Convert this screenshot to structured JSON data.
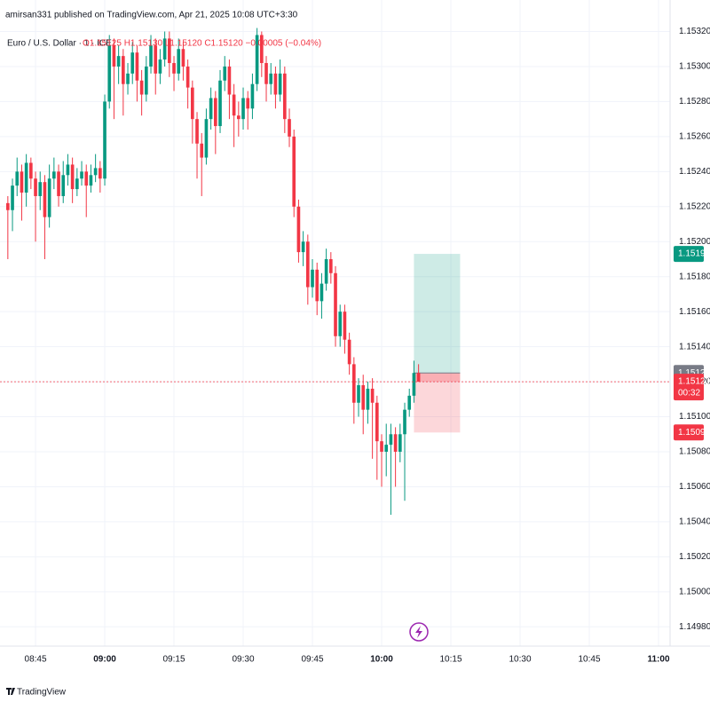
{
  "header": {
    "publisher": "amirsan331 published on TradingView.com, Apr 21, 2025 10:08 UTC+3:30",
    "symbol": "Euro / U.S. Dollar · 1 · ICE",
    "ohlc_text": "O1.15125 H1.15130 L1.15120 C1.15120 −0.00005 (−0.04%)"
  },
  "footer": {
    "brand": "TradingView"
  },
  "chart_data": {
    "type": "candlestick",
    "up_color": "#089981",
    "down_color": "#f23645",
    "grid": true,
    "xlim": [
      517.3,
      662.5
    ],
    "xticks": [
      {
        "value": 525,
        "label": "08:45"
      },
      {
        "value": 540,
        "label": "09:00"
      },
      {
        "value": 555,
        "label": "09:15"
      },
      {
        "value": 570,
        "label": "09:30"
      },
      {
        "value": 585,
        "label": "09:45"
      },
      {
        "value": 600,
        "label": "10:00"
      },
      {
        "value": 615,
        "label": "10:15"
      },
      {
        "value": 630,
        "label": "10:30"
      },
      {
        "value": 645,
        "label": "10:45"
      },
      {
        "value": 660,
        "label": "11:00"
      }
    ],
    "ylim": [
      1.14969,
      1.15338
    ],
    "yticks": [
      {
        "value": 1.1532,
        "label": "1.15320"
      },
      {
        "value": 1.153,
        "label": "1.15300"
      },
      {
        "value": 1.1528,
        "label": "1.15280"
      },
      {
        "value": 1.1526,
        "label": "1.15260"
      },
      {
        "value": 1.1524,
        "label": "1.15240"
      },
      {
        "value": 1.1522,
        "label": "1.15220"
      },
      {
        "value": 1.152,
        "label": "1.15200"
      },
      {
        "value": 1.1518,
        "label": "1.15180"
      },
      {
        "value": 1.1516,
        "label": "1.15160"
      },
      {
        "value": 1.1514,
        "label": "1.15140"
      },
      {
        "value": 1.1512,
        "label": "1.15120"
      },
      {
        "value": 1.151,
        "label": "1.15100"
      },
      {
        "value": 1.1508,
        "label": "1.15080"
      },
      {
        "value": 1.1506,
        "label": "1.15060"
      },
      {
        "value": 1.1504,
        "label": "1.15040"
      },
      {
        "value": 1.1502,
        "label": "1.15020"
      },
      {
        "value": 1.15,
        "label": "1.15000"
      },
      {
        "value": 1.1498,
        "label": "1.14980"
      }
    ],
    "x": [
      519,
      520,
      521,
      522,
      523,
      524,
      525,
      526,
      527,
      528,
      529,
      530,
      531,
      532,
      533,
      534,
      535,
      536,
      537,
      538,
      539,
      540,
      541,
      542,
      543,
      544,
      545,
      546,
      547,
      548,
      549,
      550,
      551,
      552,
      553,
      554,
      555,
      556,
      557,
      558,
      559,
      560,
      561,
      562,
      563,
      564,
      565,
      566,
      567,
      568,
      569,
      570,
      571,
      572,
      573,
      574,
      575,
      576,
      577,
      578,
      579,
      580,
      581,
      582,
      583,
      584,
      585,
      586,
      587,
      588,
      589,
      590,
      591,
      592,
      593,
      594,
      595,
      596,
      597,
      598,
      599,
      600,
      601,
      602,
      603,
      604,
      605,
      606,
      607,
      608
    ],
    "ohlc": [
      [
        1.15222,
        1.15226,
        1.1519,
        1.15218
      ],
      [
        1.15218,
        1.15236,
        1.15206,
        1.15232
      ],
      [
        1.15232,
        1.15248,
        1.15226,
        1.1524
      ],
      [
        1.1524,
        1.15244,
        1.15212,
        1.15228
      ],
      [
        1.15228,
        1.1525,
        1.1522,
        1.15245
      ],
      [
        1.15245,
        1.15248,
        1.1523,
        1.15236
      ],
      [
        1.15236,
        1.1524,
        1.152,
        1.15226
      ],
      [
        1.15226,
        1.1524,
        1.15218,
        1.15234
      ],
      [
        1.15234,
        1.15238,
        1.1519,
        1.15214
      ],
      [
        1.15214,
        1.15244,
        1.15208,
        1.15236
      ],
      [
        1.15236,
        1.15248,
        1.1523,
        1.1524
      ],
      [
        1.1524,
        1.15244,
        1.1522,
        1.15226
      ],
      [
        1.15226,
        1.15246,
        1.15222,
        1.15238
      ],
      [
        1.15238,
        1.1525,
        1.15232,
        1.15244
      ],
      [
        1.15244,
        1.15248,
        1.15222,
        1.1523
      ],
      [
        1.1523,
        1.15242,
        1.15226,
        1.15236
      ],
      [
        1.15236,
        1.15246,
        1.15232,
        1.1524
      ],
      [
        1.1524,
        1.15244,
        1.15214,
        1.15232
      ],
      [
        1.15232,
        1.15244,
        1.15228,
        1.15238
      ],
      [
        1.15238,
        1.1525,
        1.15234,
        1.15242
      ],
      [
        1.15242,
        1.15246,
        1.15228,
        1.15236
      ],
      [
        1.15236,
        1.15284,
        1.15232,
        1.1528
      ],
      [
        1.1528,
        1.15318,
        1.15276,
        1.15312
      ],
      [
        1.15312,
        1.15316,
        1.1527,
        1.153
      ],
      [
        1.153,
        1.15312,
        1.1529,
        1.15306
      ],
      [
        1.15306,
        1.1531,
        1.15272,
        1.1529
      ],
      [
        1.1529,
        1.15302,
        1.15284,
        1.15296
      ],
      [
        1.15296,
        1.15314,
        1.1529,
        1.15308
      ],
      [
        1.15308,
        1.15312,
        1.1528,
        1.15292
      ],
      [
        1.15292,
        1.15298,
        1.15272,
        1.15284
      ],
      [
        1.15284,
        1.15306,
        1.1528,
        1.153
      ],
      [
        1.153,
        1.15318,
        1.15296,
        1.15312
      ],
      [
        1.15312,
        1.15316,
        1.15284,
        1.15296
      ],
      [
        1.15296,
        1.1531,
        1.1529,
        1.15304
      ],
      [
        1.15304,
        1.1532,
        1.153,
        1.15316
      ],
      [
        1.15316,
        1.1532,
        1.15294,
        1.15302
      ],
      [
        1.15302,
        1.15306,
        1.15286,
        1.15296
      ],
      [
        1.15296,
        1.15316,
        1.15292,
        1.1531
      ],
      [
        1.1531,
        1.15314,
        1.15292,
        1.153
      ],
      [
        1.153,
        1.15304,
        1.15276,
        1.15288
      ],
      [
        1.15288,
        1.15292,
        1.15256,
        1.1527
      ],
      [
        1.1527,
        1.15274,
        1.15236,
        1.15256
      ],
      [
        1.15256,
        1.15262,
        1.15226,
        1.15248
      ],
      [
        1.15248,
        1.15276,
        1.15244,
        1.1527
      ],
      [
        1.1527,
        1.15288,
        1.15264,
        1.15282
      ],
      [
        1.15282,
        1.15286,
        1.1525,
        1.15266
      ],
      [
        1.15266,
        1.15298,
        1.15262,
        1.15292
      ],
      [
        1.15292,
        1.15306,
        1.15286,
        1.153
      ],
      [
        1.153,
        1.15304,
        1.1527,
        1.15284
      ],
      [
        1.15284,
        1.1529,
        1.15254,
        1.15272
      ],
      [
        1.15272,
        1.1528,
        1.1526,
        1.1527
      ],
      [
        1.1527,
        1.15288,
        1.15264,
        1.15282
      ],
      [
        1.15282,
        1.15286,
        1.15264,
        1.15276
      ],
      [
        1.15276,
        1.15296,
        1.1527,
        1.1529
      ],
      [
        1.1529,
        1.15322,
        1.15286,
        1.15318
      ],
      [
        1.15318,
        1.1532,
        1.15294,
        1.15302
      ],
      [
        1.15302,
        1.15306,
        1.1528,
        1.1529
      ],
      [
        1.1529,
        1.15302,
        1.15284,
        1.15296
      ],
      [
        1.15296,
        1.153,
        1.15276,
        1.15284
      ],
      [
        1.15284,
        1.15304,
        1.1528,
        1.15296
      ],
      [
        1.15296,
        1.153,
        1.15262,
        1.1527
      ],
      [
        1.1527,
        1.15276,
        1.15254,
        1.1526
      ],
      [
        1.1526,
        1.15264,
        1.15214,
        1.1522
      ],
      [
        1.1522,
        1.15224,
        1.15188,
        1.15194
      ],
      [
        1.15194,
        1.15206,
        1.15186,
        1.152
      ],
      [
        1.152,
        1.15204,
        1.15164,
        1.15174
      ],
      [
        1.15174,
        1.1519,
        1.15168,
        1.15184
      ],
      [
        1.15184,
        1.15188,
        1.15158,
        1.15166
      ],
      [
        1.15166,
        1.15182,
        1.15156,
        1.15176
      ],
      [
        1.15176,
        1.15196,
        1.15172,
        1.1519
      ],
      [
        1.1519,
        1.15194,
        1.15176,
        1.15182
      ],
      [
        1.15182,
        1.15186,
        1.1514,
        1.15146
      ],
      [
        1.15146,
        1.15164,
        1.1514,
        1.1516
      ],
      [
        1.1516,
        1.15164,
        1.15136,
        1.15144
      ],
      [
        1.15144,
        1.15148,
        1.15124,
        1.1513
      ],
      [
        1.1513,
        1.15134,
        1.15096,
        1.15108
      ],
      [
        1.15108,
        1.15122,
        1.151,
        1.15118
      ],
      [
        1.15118,
        1.15124,
        1.1509,
        1.15104
      ],
      [
        1.15104,
        1.1512,
        1.15096,
        1.15116
      ],
      [
        1.15116,
        1.15122,
        1.15076,
        1.15108
      ],
      [
        1.15108,
        1.15112,
        1.15064,
        1.15086
      ],
      [
        1.15086,
        1.1509,
        1.1506,
        1.1508
      ],
      [
        1.1508,
        1.15096,
        1.15066,
        1.15084
      ],
      [
        1.15084,
        1.15096,
        1.15044,
        1.1509
      ],
      [
        1.1509,
        1.15094,
        1.1506,
        1.1508
      ],
      [
        1.1508,
        1.15096,
        1.15074,
        1.1509
      ],
      [
        1.1509,
        1.15108,
        1.15052,
        1.15104
      ],
      [
        1.15104,
        1.15116,
        1.151,
        1.15112
      ],
      [
        1.15112,
        1.15132,
        1.15108,
        1.15125
      ],
      [
        1.15125,
        1.1513,
        1.1512,
        1.1512
      ]
    ],
    "position": {
      "start": 607,
      "end": 617,
      "entry": 1.15125,
      "target": 1.15193,
      "stop": 1.15091
    },
    "last_price": {
      "value": 1.1512,
      "label": "1.15120"
    },
    "countdown": "00:32"
  }
}
